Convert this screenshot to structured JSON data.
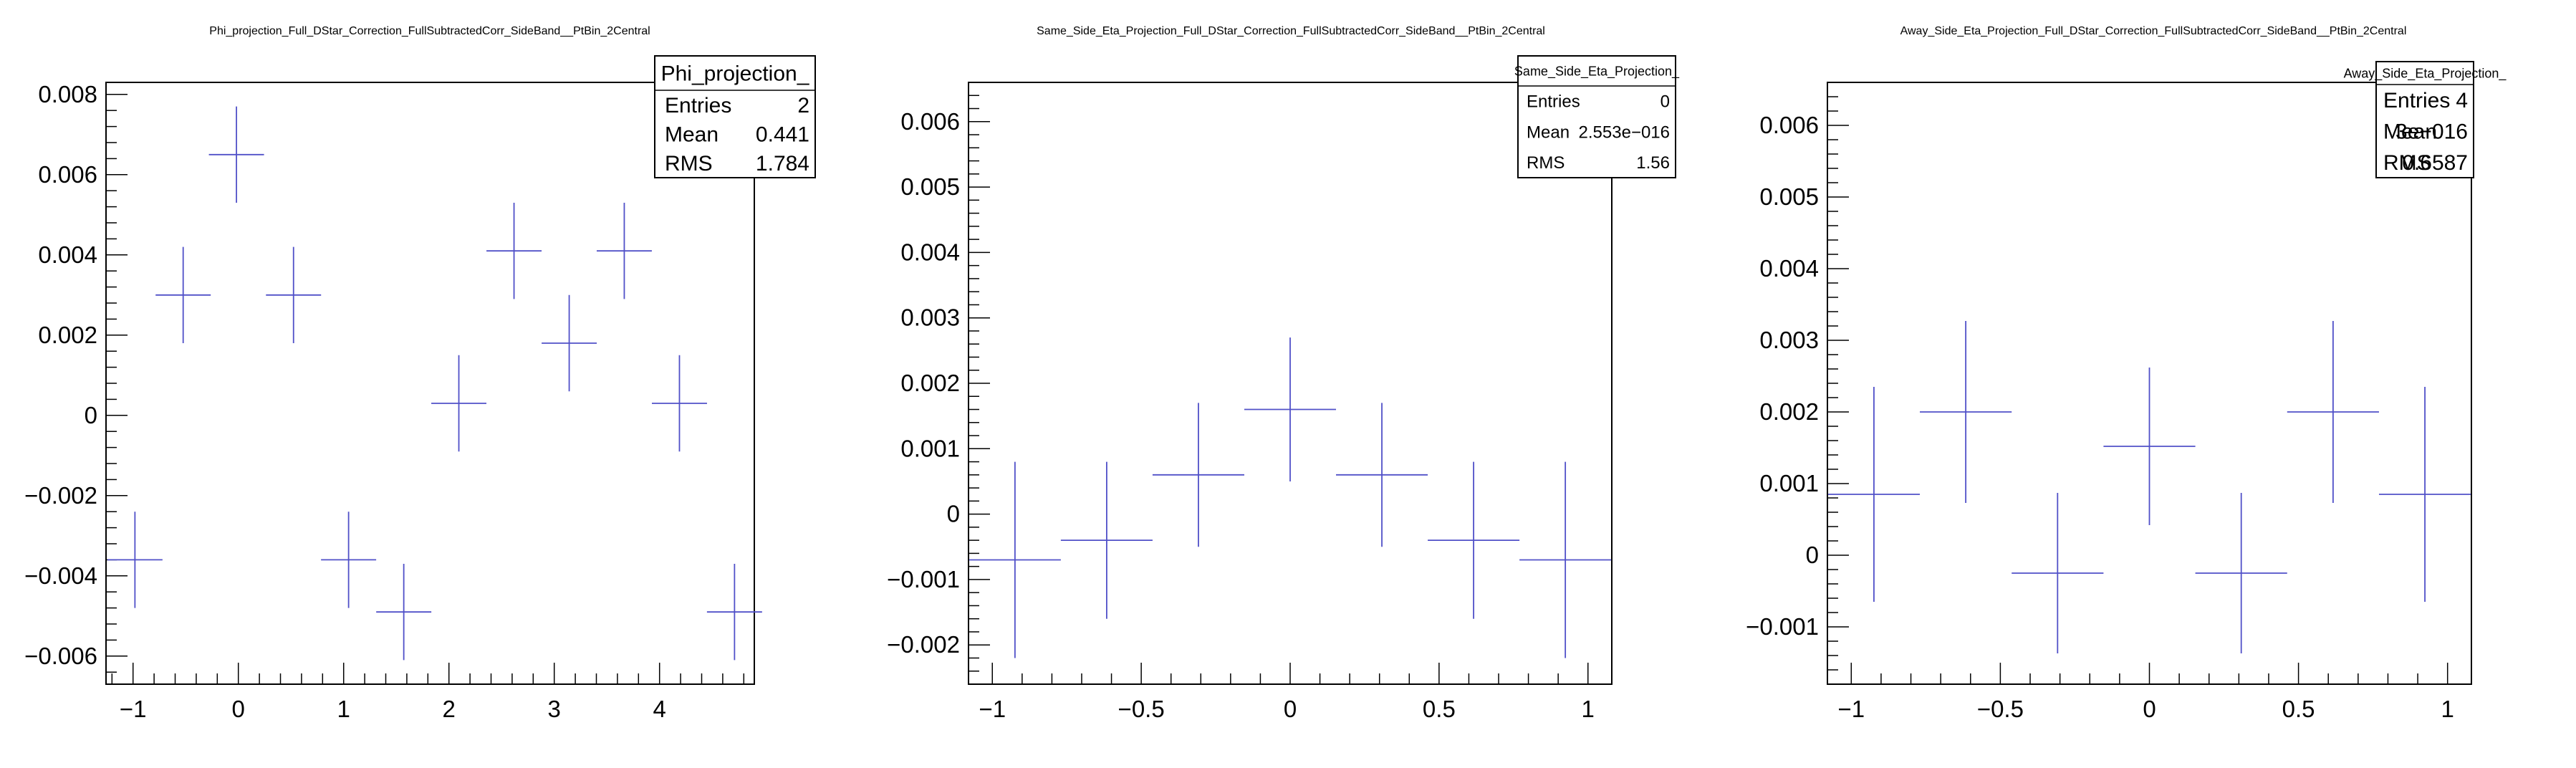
{
  "chart_data": [
    {
      "type": "scatter",
      "title": "Phi_projection_Full_DStar_Correction_FullSubtractedCorr_SideBand__PtBin_2Central",
      "xlabel": "",
      "ylabel": "",
      "xlim": [
        -1.2566,
        4.9
      ],
      "ylim": [
        -0.0067,
        0.0083
      ],
      "xticks": [
        -1,
        0,
        1,
        2,
        3,
        4
      ],
      "xtick_labels": [
        "−1",
        "0",
        "1",
        "2",
        "3",
        "4"
      ],
      "yticks": [
        -0.006,
        -0.004,
        -0.002,
        0,
        0.002,
        0.004,
        0.006,
        0.008
      ],
      "ytick_labels": [
        "−0.006",
        "−0.004",
        "−0.002",
        "0",
        "0.002",
        "0.004",
        "0.006",
        "0.008"
      ],
      "series": [
        {
          "x": [
            -0.982,
            -0.524,
            -0.018,
            0.524,
            1.047,
            1.571,
            2.094,
            2.618,
            3.142,
            3.665,
            4.189,
            4.712
          ],
          "y": [
            -0.0036,
            0.003,
            0.0065,
            0.003,
            -0.0036,
            -0.0049,
            0.0003,
            0.0041,
            0.0018,
            0.0041,
            0.0003,
            -0.0049
          ],
          "xerr": [
            0.2618,
            0.2618,
            0.2618,
            0.2618,
            0.2618,
            0.2618,
            0.2618,
            0.2618,
            0.2618,
            0.2618,
            0.2618,
            0.2618
          ],
          "yerr": [
            0.0012,
            0.0012,
            0.0012,
            0.0012,
            0.0012,
            0.0012,
            0.0012,
            0.0012,
            0.0012,
            0.0012,
            0.0012,
            0.0012
          ]
        }
      ],
      "stats": {
        "name": "Phi_projection_",
        "rows": [
          {
            "label": "Entries",
            "value": "2"
          },
          {
            "label": "Mean",
            "value": "0.441"
          },
          {
            "label": "RMS",
            "value": "1.784"
          }
        ]
      }
    },
    {
      "type": "scatter",
      "title": "Same_Side_Eta_Projection_Full_DStar_Correction_FullSubtractedCorr_SideBand__PtBin_2Central",
      "xlabel": "",
      "ylabel": "",
      "xlim": [
        -1.08,
        1.08
      ],
      "ylim": [
        -0.0026,
        0.0066
      ],
      "xticks": [
        -1,
        -0.5,
        0,
        0.5,
        1
      ],
      "xtick_labels": [
        "−1",
        "−0.5",
        "0",
        "0.5",
        "1"
      ],
      "yticks": [
        -0.002,
        -0.001,
        0,
        0.001,
        0.002,
        0.003,
        0.004,
        0.005,
        0.006
      ],
      "ytick_labels": [
        "−0.002",
        "−0.001",
        "0",
        "0.001",
        "0.002",
        "0.003",
        "0.004",
        "0.005",
        "0.006"
      ],
      "series": [
        {
          "x": [
            -0.924,
            -0.616,
            -0.308,
            0,
            0.308,
            0.616,
            0.924
          ],
          "y": [
            -0.0007,
            -0.0004,
            0.0006,
            0.0016,
            0.0006,
            -0.0004,
            -0.0007
          ],
          "xerr": [
            0.154,
            0.154,
            0.154,
            0.154,
            0.154,
            0.154,
            0.154
          ],
          "yerr": [
            0.0015,
            0.0012,
            0.0011,
            0.0011,
            0.0011,
            0.0012,
            0.0015
          ]
        }
      ],
      "stats": {
        "name": "Same_Side_Eta_Projection_",
        "rows": [
          {
            "label": "Entries",
            "value": "0"
          },
          {
            "label": "Mean",
            "value": "2.553e−016"
          },
          {
            "label": "RMS",
            "value": "1.56"
          }
        ]
      }
    },
    {
      "type": "scatter",
      "title": "Away_Side_Eta_Projection_Full_DStar_Correction_FullSubtractedCorr_SideBand__PtBin_2Central",
      "xlabel": "",
      "ylabel": "",
      "xlim": [
        -1.08,
        1.08
      ],
      "ylim": [
        -0.0018,
        0.0066
      ],
      "xticks": [
        -1,
        -0.5,
        0,
        0.5,
        1
      ],
      "xtick_labels": [
        "−1",
        "−0.5",
        "0",
        "0.5",
        "1"
      ],
      "yticks": [
        -0.001,
        0,
        0.001,
        0.002,
        0.003,
        0.004,
        0.005,
        0.006
      ],
      "ytick_labels": [
        "−0.001",
        "0",
        "0.001",
        "0.002",
        "0.003",
        "0.004",
        "0.005",
        "0.006"
      ],
      "series": [
        {
          "x": [
            -0.924,
            -0.616,
            -0.308,
            0,
            0.308,
            0.616,
            0.924
          ],
          "y": [
            0.00085,
            0.002,
            -0.00025,
            0.00152,
            -0.00025,
            0.002,
            0.00085
          ],
          "xerr": [
            0.154,
            0.154,
            0.154,
            0.154,
            0.154,
            0.154,
            0.154
          ],
          "yerr": [
            0.0015,
            0.00127,
            0.00112,
            0.0011,
            0.00112,
            0.00127,
            0.0015
          ]
        }
      ],
      "stats": {
        "name": "Away_Side_Eta_Projection_",
        "rows": [
          {
            "label": "Entries",
            "value": "4"
          },
          {
            "label": "Mean",
            "value": "3e−016"
          },
          {
            "label": "RMS",
            "value": "0.6587"
          }
        ]
      }
    }
  ],
  "colors": {
    "marker": "#5050c8",
    "frame": "#000000",
    "background": "#ffffff"
  }
}
